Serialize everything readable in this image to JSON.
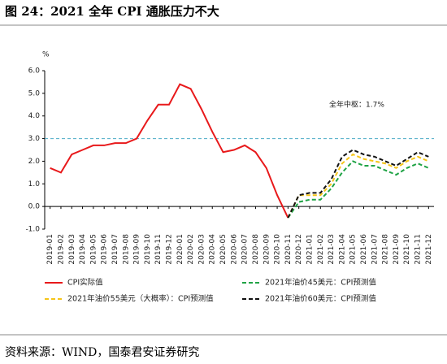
{
  "chart_data": {
    "type": "line",
    "title": "图 24：2021 全年 CPI 通胀压力不大",
    "y_unit": "%",
    "annotation": "全年中枢：1.7%",
    "source": "资料来源：WIND，国泰君安证券研究",
    "categories": [
      "2019-01",
      "2019-02",
      "2019-03",
      "2019-04",
      "2019-05",
      "2019-06",
      "2019-07",
      "2019-08",
      "2019-09",
      "2019-10",
      "2019-11",
      "2019-12",
      "2020-01",
      "2020-02",
      "2020-03",
      "2020-04",
      "2020-05",
      "2020-06",
      "2020-07",
      "2020-08",
      "2020-09",
      "2020-10",
      "2020-11",
      "2020-12",
      "2021-01",
      "2021-02",
      "2021-03",
      "2021-04",
      "2021-05",
      "2021-06",
      "2021-07",
      "2021-08",
      "2021-09",
      "2021-10",
      "2021-11",
      "2021-12"
    ],
    "series": [
      {
        "name": "CPI实际值",
        "color": "#e8191b",
        "dashed": false,
        "values": [
          1.7,
          1.5,
          2.3,
          2.5,
          2.7,
          2.7,
          2.8,
          2.8,
          3.0,
          3.8,
          4.5,
          4.5,
          5.4,
          5.2,
          4.3,
          3.3,
          2.4,
          2.5,
          2.7,
          2.4,
          1.7,
          0.5,
          -0.5,
          null,
          null,
          null,
          null,
          null,
          null,
          null,
          null,
          null,
          null,
          null,
          null,
          null
        ]
      },
      {
        "name": "2021年油价45美元：CPI预测值",
        "color": "#1fa345",
        "dashed": true,
        "values": [
          null,
          null,
          null,
          null,
          null,
          null,
          null,
          null,
          null,
          null,
          null,
          null,
          null,
          null,
          null,
          null,
          null,
          null,
          null,
          null,
          null,
          null,
          -0.5,
          0.2,
          0.3,
          0.3,
          0.8,
          1.5,
          2.0,
          1.8,
          1.8,
          1.6,
          1.4,
          1.7,
          1.9,
          1.7
        ]
      },
      {
        "name": "2021年油价55美元（大概率）：CPI预测值",
        "color": "#f5c518",
        "dashed": true,
        "values": [
          null,
          null,
          null,
          null,
          null,
          null,
          null,
          null,
          null,
          null,
          null,
          null,
          null,
          null,
          null,
          null,
          null,
          null,
          null,
          null,
          null,
          null,
          -0.5,
          0.5,
          0.5,
          0.5,
          1.0,
          1.9,
          2.3,
          2.1,
          2.0,
          1.9,
          1.7,
          2.0,
          2.2,
          2.0
        ]
      },
      {
        "name": "2021年油价60美元：CPI预测值",
        "color": "#111111",
        "dashed": true,
        "values": [
          null,
          null,
          null,
          null,
          null,
          null,
          null,
          null,
          null,
          null,
          null,
          null,
          null,
          null,
          null,
          null,
          null,
          null,
          null,
          null,
          null,
          null,
          -0.5,
          0.5,
          0.6,
          0.6,
          1.2,
          2.2,
          2.5,
          2.3,
          2.2,
          2.0,
          1.8,
          2.1,
          2.4,
          2.2
        ]
      }
    ],
    "ylim": [
      -1,
      6
    ],
    "yticks": [
      {
        "value": -1,
        "label": "-1.0"
      },
      {
        "value": 0,
        "label": "0.0"
      },
      {
        "value": 1,
        "label": "1.0"
      },
      {
        "value": 2,
        "label": "2.0"
      },
      {
        "value": 3,
        "label": "3.0"
      },
      {
        "value": 4,
        "label": "4.0"
      },
      {
        "value": 5,
        "label": "5.0"
      },
      {
        "value": 6,
        "label": "6.0"
      }
    ],
    "reference_line": {
      "value": 3,
      "color": "#4bacc6"
    },
    "grid": false
  }
}
